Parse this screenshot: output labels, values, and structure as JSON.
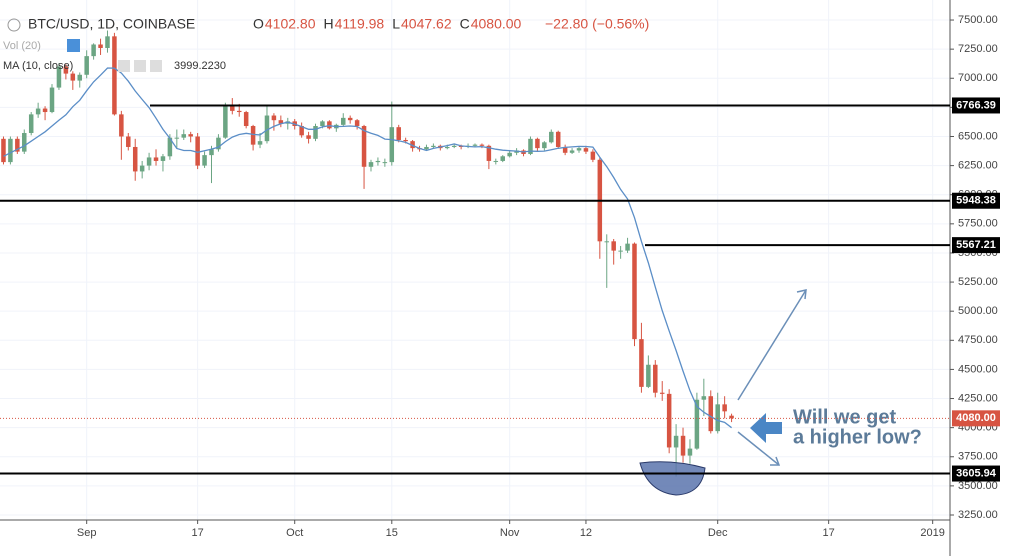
{
  "chart_data": {
    "type": "candlestick",
    "title": "BTC/USD, 1D, COINBASE",
    "header_values": [
      {
        "prefix": "O",
        "text": "4102.80"
      },
      {
        "prefix": "H",
        "text": "4119.98"
      },
      {
        "prefix": "L",
        "text": "4047.62"
      },
      {
        "prefix": "C",
        "text": "4080.00"
      }
    ],
    "change": "−22.80 (−0.56%)",
    "volume_label": "Vol (20)",
    "up_color": "#6ba583",
    "down_color": "#d75442",
    "grid": true,
    "x": [
      0,
      1,
      2,
      3,
      4,
      5,
      6,
      7,
      8,
      9,
      10,
      11,
      12,
      13,
      14,
      15,
      16,
      17,
      18,
      19,
      20,
      21,
      22,
      23,
      24,
      25,
      26,
      27,
      28,
      29,
      30,
      31,
      32,
      33,
      34,
      35,
      36,
      37,
      38,
      39,
      40,
      41,
      42,
      43,
      44,
      45,
      46,
      47,
      48,
      49,
      50,
      51,
      52,
      53,
      54,
      55,
      56,
      57,
      58,
      59,
      60,
      61,
      62,
      63,
      64,
      65,
      66,
      67,
      68,
      69,
      70,
      71,
      72,
      73,
      74,
      75,
      76,
      77,
      78,
      79,
      80,
      81,
      82,
      83,
      84,
      85,
      86,
      87,
      88,
      89,
      90,
      91,
      92,
      93,
      94,
      95,
      96,
      97,
      98,
      99,
      100,
      101,
      102,
      103,
      104,
      105
    ],
    "ohlc": [
      [
        6480,
        6500,
        6260,
        6280
      ],
      [
        6280,
        6500,
        6260,
        6480
      ],
      [
        6480,
        6500,
        6350,
        6370
      ],
      [
        6370,
        6560,
        6350,
        6530
      ],
      [
        6530,
        6710,
        6510,
        6690
      ],
      [
        6690,
        6790,
        6660,
        6740
      ],
      [
        6740,
        6760,
        6640,
        6710
      ],
      [
        6710,
        6950,
        6700,
        6920
      ],
      [
        6920,
        7130,
        6900,
        7100
      ],
      [
        7100,
        7120,
        6990,
        7040
      ],
      [
        7040,
        7060,
        6900,
        6980
      ],
      [
        6980,
        7050,
        6920,
        7030
      ],
      [
        7030,
        7240,
        7000,
        7190
      ],
      [
        7190,
        7300,
        7160,
        7290
      ],
      [
        7290,
        7340,
        7200,
        7260
      ],
      [
        7260,
        7410,
        7220,
        7360
      ],
      [
        7360,
        7390,
        6680,
        6690
      ],
      [
        6690,
        6720,
        6300,
        6500
      ],
      [
        6500,
        6530,
        6380,
        6410
      ],
      [
        6410,
        6480,
        6120,
        6200
      ],
      [
        6200,
        6290,
        6140,
        6250
      ],
      [
        6250,
        6360,
        6210,
        6320
      ],
      [
        6320,
        6390,
        6250,
        6290
      ],
      [
        6290,
        6350,
        6200,
        6330
      ],
      [
        6330,
        6520,
        6300,
        6490
      ],
      [
        6490,
        6560,
        6400,
        6490
      ],
      [
        6490,
        6560,
        6470,
        6520
      ],
      [
        6520,
        6540,
        6450,
        6500
      ],
      [
        6500,
        6530,
        6220,
        6250
      ],
      [
        6250,
        6370,
        6230,
        6340
      ],
      [
        6340,
        6420,
        6100,
        6390
      ],
      [
        6390,
        6520,
        6370,
        6490
      ],
      [
        6490,
        6790,
        6480,
        6760
      ],
      [
        6760,
        6830,
        6690,
        6720
      ],
      [
        6720,
        6780,
        6670,
        6710
      ],
      [
        6710,
        6720,
        6570,
        6590
      ],
      [
        6590,
        6600,
        6380,
        6430
      ],
      [
        6430,
        6530,
        6400,
        6460
      ],
      [
        6460,
        6760,
        6440,
        6680
      ],
      [
        6680,
        6700,
        6550,
        6640
      ],
      [
        6640,
        6680,
        6580,
        6610
      ],
      [
        6610,
        6660,
        6560,
        6630
      ],
      [
        6630,
        6650,
        6560,
        6590
      ],
      [
        6590,
        6620,
        6490,
        6510
      ],
      [
        6510,
        6540,
        6440,
        6480
      ],
      [
        6480,
        6610,
        6460,
        6590
      ],
      [
        6590,
        6640,
        6570,
        6630
      ],
      [
        6630,
        6640,
        6560,
        6570
      ],
      [
        6570,
        6610,
        6540,
        6600
      ],
      [
        6600,
        6700,
        6590,
        6660
      ],
      [
        6660,
        6680,
        6610,
        6640
      ],
      [
        6640,
        6650,
        6560,
        6590
      ],
      [
        6590,
        6600,
        6050,
        6240
      ],
      [
        6240,
        6300,
        6200,
        6280
      ],
      [
        6280,
        6320,
        6250,
        6290
      ],
      [
        6280,
        6310,
        6240,
        6280
      ],
      [
        6280,
        6800,
        6250,
        6580
      ],
      [
        6580,
        6600,
        6450,
        6470
      ],
      [
        6470,
        6490,
        6440,
        6460
      ],
      [
        6460,
        6470,
        6370,
        6400
      ],
      [
        6400,
        6420,
        6370,
        6390
      ],
      [
        6390,
        6430,
        6380,
        6410
      ],
      [
        6410,
        6440,
        6400,
        6420
      ],
      [
        6420,
        6430,
        6380,
        6400
      ],
      [
        6400,
        6430,
        6390,
        6410
      ],
      [
        6410,
        6440,
        6400,
        6420
      ],
      [
        6420,
        6430,
        6390,
        6410
      ],
      [
        6410,
        6440,
        6400,
        6420
      ],
      [
        6420,
        6440,
        6410,
        6430
      ],
      [
        6430,
        6440,
        6400,
        6420
      ],
      [
        6420,
        6430,
        6220,
        6290
      ],
      [
        6290,
        6310,
        6260,
        6290
      ],
      [
        6290,
        6340,
        6280,
        6330
      ],
      [
        6330,
        6380,
        6320,
        6360
      ],
      [
        6360,
        6400,
        6340,
        6380
      ],
      [
        6380,
        6390,
        6330,
        6350
      ],
      [
        6350,
        6500,
        6340,
        6480
      ],
      [
        6480,
        6490,
        6370,
        6400
      ],
      [
        6400,
        6460,
        6380,
        6450
      ],
      [
        6450,
        6560,
        6440,
        6540
      ],
      [
        6540,
        6550,
        6400,
        6410
      ],
      [
        6410,
        6430,
        6340,
        6360
      ],
      [
        6360,
        6400,
        6350,
        6380
      ],
      [
        6380,
        6410,
        6360,
        6400
      ],
      [
        6400,
        6420,
        6350,
        6370
      ],
      [
        6370,
        6390,
        6280,
        6300
      ],
      [
        6300,
        6320,
        5450,
        5600
      ],
      [
        5600,
        5660,
        5200,
        5600
      ],
      [
        5600,
        5620,
        5400,
        5520
      ],
      [
        5520,
        5560,
        5450,
        5520
      ],
      [
        5520,
        5630,
        5500,
        5580
      ],
      [
        5580,
        5590,
        4700,
        4760
      ],
      [
        4760,
        4900,
        4300,
        4350
      ],
      [
        4350,
        4620,
        4340,
        4540
      ],
      [
        4540,
        4580,
        4260,
        4300
      ],
      [
        4300,
        4400,
        4230,
        4290
      ],
      [
        4290,
        4330,
        3780,
        3830
      ],
      [
        3830,
        4030,
        3580,
        3930
      ],
      [
        3930,
        4000,
        3700,
        3760
      ],
      [
        3760,
        3900,
        3690,
        3820
      ],
      [
        3820,
        4300,
        3810,
        4240
      ],
      [
        4240,
        4420,
        4100,
        4270
      ],
      [
        4270,
        4320,
        3950,
        3970
      ],
      [
        3970,
        4300,
        3950,
        4200
      ],
      [
        4200,
        4270,
        4080,
        4140
      ],
      [
        4102.8,
        4119.98,
        4047.62,
        4080.0
      ]
    ],
    "ma": {
      "label": "MA (10, close)",
      "color": "#5b8ec7",
      "value_label": "3999.2230",
      "values": [
        6330,
        6360,
        6390,
        6420,
        6460,
        6500,
        6540,
        6590,
        6640,
        6686,
        6756,
        6811,
        6893,
        6969,
        7026,
        7088,
        7086,
        7044,
        6975,
        6891,
        6818,
        6747,
        6657,
        6561,
        6484,
        6397,
        6380,
        6380,
        6364,
        6378,
        6392,
        6409,
        6456,
        6495,
        6517,
        6527,
        6518,
        6514,
        6557,
        6587,
        6609,
        6623,
        6606,
        6585,
        6562,
        6562,
        6582,
        6593,
        6585,
        6587,
        6590,
        6586,
        6551,
        6528,
        6509,
        6478,
        6473,
        6463,
        6449,
        6423,
        6398,
        6380,
        6398,
        6410,
        6422,
        6436,
        6419,
        6414,
        6411,
        6413,
        6403,
        6391,
        6382,
        6378,
        6375,
        6368,
        6375,
        6373,
        6375,
        6387,
        6399,
        6406,
        6411,
        6415,
        6414,
        6409,
        6321,
        6241,
        6148,
        6046,
        5963,
        5803,
        5600,
        5414,
        5207,
        5006,
        4829,
        4662,
        4486,
        4316,
        4182,
        4133,
        4095,
        4061,
        4045,
        3999.223
      ]
    },
    "levels": [
      {
        "value": 6766.39,
        "label": "6766.39"
      },
      {
        "value": 5948.38,
        "label": "5948.38"
      },
      {
        "value": 5567.21,
        "label": "5567.21"
      },
      {
        "value": 3605.94,
        "label": "3605.94"
      }
    ],
    "last_price": {
      "value": 4080,
      "label": "4080.00"
    },
    "annotation": [
      "Will we get",
      "a higher low?"
    ],
    "xlim": [
      -0.5,
      136.5
    ],
    "xticks": [
      {
        "value": 12,
        "label": "Sep"
      },
      {
        "value": 28,
        "label": "17"
      },
      {
        "value": 42,
        "label": "Oct"
      },
      {
        "value": 56,
        "label": "15"
      },
      {
        "value": 73,
        "label": "Nov"
      },
      {
        "value": 84,
        "label": "12"
      },
      {
        "value": 103,
        "label": "Dec"
      },
      {
        "value": 119,
        "label": "17"
      },
      {
        "value": 134,
        "label": "2019"
      }
    ],
    "ylim": [
      3207,
      7672
    ],
    "yticks": [
      {
        "value": 3250,
        "label": "3250.00"
      },
      {
        "value": 3500,
        "label": "3500.00"
      },
      {
        "value": 3750,
        "label": "3750.00"
      },
      {
        "value": 4000,
        "label": "4000.00"
      },
      {
        "value": 4250,
        "label": "4250.00"
      },
      {
        "value": 4500,
        "label": "4500.00"
      },
      {
        "value": 4750,
        "label": "4750.00"
      },
      {
        "value": 5000,
        "label": "5000.00"
      },
      {
        "value": 5250,
        "label": "5250.00"
      },
      {
        "value": 5500,
        "label": "5500.00"
      },
      {
        "value": 5750,
        "label": "5750.00"
      },
      {
        "value": 6000,
        "label": "6000.00"
      },
      {
        "value": 6250,
        "label": "6250.00"
      },
      {
        "value": 6500,
        "label": "6500.00"
      },
      {
        "value": 6750,
        "label": "6750.00"
      },
      {
        "value": 7000,
        "label": "7000.00"
      },
      {
        "value": 7250,
        "label": "7250.00"
      },
      {
        "value": 7500,
        "label": "7500.00"
      }
    ]
  }
}
